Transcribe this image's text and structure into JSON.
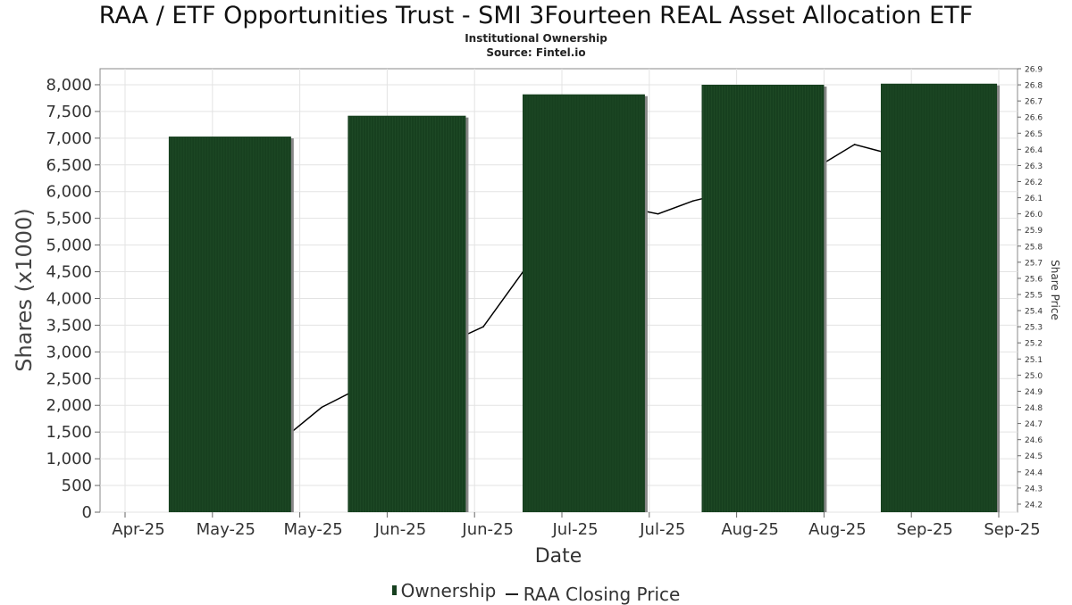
{
  "header": {
    "title": "RAA / ETF Opportunities Trust - SMI 3Fourteen REAL Asset Allocation ETF",
    "subtitle": "Institutional Ownership",
    "source": "Source: Fintel.io"
  },
  "legend": {
    "ownership_label": "Ownership",
    "price_label": "RAA Closing Price"
  },
  "colors": {
    "bar": "#17401f",
    "bar_shadow": "#888888",
    "line": "#000000",
    "grid": "#e3e3e3"
  },
  "chart_data": {
    "type": "bar",
    "xlabel": "Date",
    "ylabel": "Shares (x1000)",
    "y2label": "Share Price",
    "x_tick_labels": [
      "Apr-25",
      "May-25",
      "May-25",
      "Jun-25",
      "Jun-25",
      "Jul-25",
      "Jul-25",
      "Aug-25",
      "Aug-25",
      "Sep-25",
      "Sep-25"
    ],
    "ylim": [
      0,
      8300
    ],
    "y_ticks": [
      "0",
      "500",
      "1,000",
      "1,500",
      "2,000",
      "2,500",
      "3,000",
      "3,500",
      "4,000",
      "4,500",
      "5,000",
      "5,500",
      "6,000",
      "6,500",
      "7,000",
      "7,500",
      "8,000"
    ],
    "y2lim": [
      24.15,
      26.9
    ],
    "y2_ticks": [
      "24.2",
      "24.3",
      "24.4",
      "24.5",
      "24.6",
      "24.7",
      "24.8",
      "24.9",
      "25.0",
      "25.1",
      "25.2",
      "25.3",
      "25.4",
      "25.5",
      "25.6",
      "25.7",
      "25.8",
      "25.9",
      "26.0",
      "26.1",
      "26.2",
      "26.3",
      "26.4",
      "26.5",
      "26.6",
      "26.7",
      "26.8",
      "26.9"
    ],
    "series": [
      {
        "name": "Ownership",
        "type": "bar",
        "bars": [
          {
            "start": 0.5,
            "end": 1.9,
            "value": 7030
          },
          {
            "start": 2.55,
            "end": 3.9,
            "value": 7420
          },
          {
            "start": 4.55,
            "end": 5.95,
            "value": 7820
          },
          {
            "start": 6.6,
            "end": 8.0,
            "value": 8000
          },
          {
            "start": 8.65,
            "end": 9.98,
            "value": 8020
          }
        ]
      },
      {
        "name": "RAA Closing Price",
        "type": "line",
        "points": [
          {
            "x": 1.8,
            "y": 24.6
          },
          {
            "x": 2.25,
            "y": 24.8
          },
          {
            "x": 3.7,
            "y": 25.2
          },
          {
            "x": 4.1,
            "y": 25.3
          },
          {
            "x": 5.1,
            "y": 26.05
          },
          {
            "x": 5.55,
            "y": 26.06
          },
          {
            "x": 6.1,
            "y": 26.0
          },
          {
            "x": 6.5,
            "y": 26.08
          },
          {
            "x": 7.8,
            "y": 26.25
          },
          {
            "x": 8.35,
            "y": 26.43
          },
          {
            "x": 8.7,
            "y": 26.38
          },
          {
            "x": 9.35,
            "y": 26.8
          }
        ]
      }
    ],
    "grid": true,
    "legend_position": "bottom"
  }
}
